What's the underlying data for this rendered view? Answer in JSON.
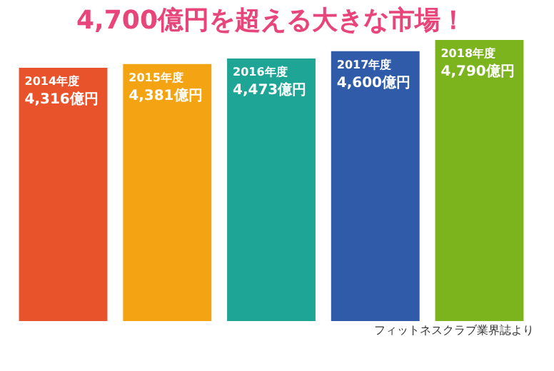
{
  "chart_data": {
    "type": "bar",
    "title": "4,700億円を超える大きな市場！",
    "categories": [
      "2014年度",
      "2015年度",
      "2016年度",
      "2017年度",
      "2018年度"
    ],
    "values": [
      4316,
      4381,
      4473,
      4600,
      4790
    ],
    "colors": [
      "#e9532b",
      "#f4a413",
      "#1ea596",
      "#2f5ba8",
      "#7cb41e"
    ],
    "value_labels": [
      "4,316億円",
      "4,381億円",
      "4,473億円",
      "4,600億円",
      "4,790億円"
    ],
    "tick_labels": false,
    "annotations": [
      "フィットネスクラブ業界誌より"
    ]
  }
}
